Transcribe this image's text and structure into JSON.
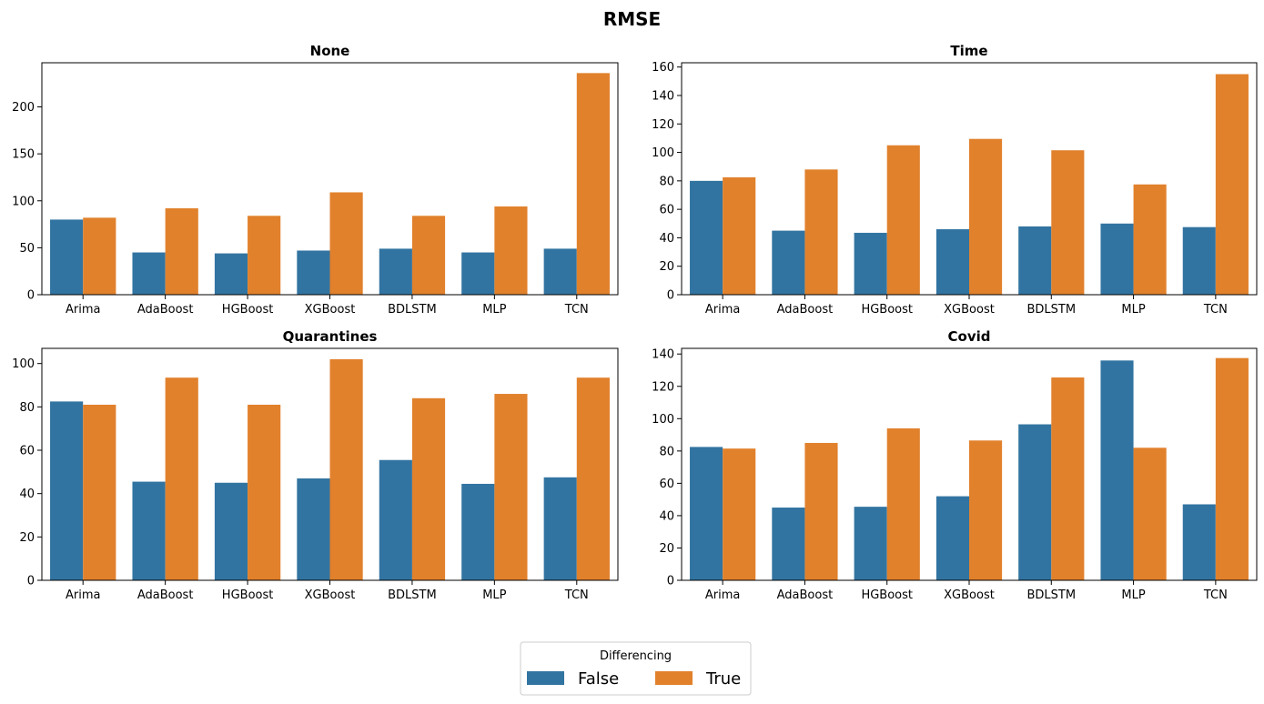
{
  "figure": {
    "title": "RMSE"
  },
  "legend": {
    "title": "Differencing",
    "placement": "bottom-center",
    "entries": [
      {
        "label": "False",
        "color": "#3274a1"
      },
      {
        "label": "True",
        "color": "#e1812c"
      }
    ]
  },
  "chart_data": [
    {
      "type": "bar",
      "title": "None",
      "categories": [
        "Arima",
        "AdaBoost",
        "HGBoost",
        "XGBoost",
        "BDLSTM",
        "MLP",
        "TCN"
      ],
      "yticks": [
        0,
        50,
        100,
        150,
        200
      ],
      "ylim": [
        0,
        247
      ],
      "series": [
        {
          "name": "False",
          "values": [
            80,
            45,
            44,
            47,
            49,
            45,
            49
          ]
        },
        {
          "name": "True",
          "values": [
            82,
            92,
            84,
            109,
            84,
            94,
            236
          ]
        }
      ]
    },
    {
      "type": "bar",
      "title": "Time",
      "categories": [
        "Arima",
        "AdaBoost",
        "HGBoost",
        "XGBoost",
        "BDLSTM",
        "MLP",
        "TCN"
      ],
      "yticks": [
        0,
        20,
        40,
        60,
        80,
        100,
        120,
        140,
        160
      ],
      "ylim": [
        0,
        163
      ],
      "series": [
        {
          "name": "False",
          "values": [
            80,
            45,
            43.5,
            46,
            48,
            50,
            47.5
          ]
        },
        {
          "name": "True",
          "values": [
            82.5,
            88,
            105,
            109.5,
            101.5,
            77.5,
            155
          ]
        }
      ]
    },
    {
      "type": "bar",
      "title": "Quarantines",
      "categories": [
        "Arima",
        "AdaBoost",
        "HGBoost",
        "XGBoost",
        "BDLSTM",
        "MLP",
        "TCN"
      ],
      "yticks": [
        0,
        20,
        40,
        60,
        80,
        100
      ],
      "ylim": [
        0,
        107
      ],
      "series": [
        {
          "name": "False",
          "values": [
            82.5,
            45.5,
            45,
            47,
            55.5,
            44.5,
            47.5
          ]
        },
        {
          "name": "True",
          "values": [
            81,
            93.5,
            81,
            102,
            84,
            86,
            93.5
          ]
        }
      ]
    },
    {
      "type": "bar",
      "title": "Covid",
      "categories": [
        "Arima",
        "AdaBoost",
        "HGBoost",
        "XGBoost",
        "BDLSTM",
        "MLP",
        "TCN"
      ],
      "yticks": [
        0,
        20,
        40,
        60,
        80,
        100,
        120,
        140
      ],
      "ylim": [
        0,
        143.5
      ],
      "series": [
        {
          "name": "False",
          "values": [
            82.5,
            45,
            45.5,
            52,
            96.5,
            136,
            47
          ]
        },
        {
          "name": "True",
          "values": [
            81.5,
            85,
            94,
            86.5,
            125.5,
            82,
            137.5
          ]
        }
      ]
    }
  ]
}
